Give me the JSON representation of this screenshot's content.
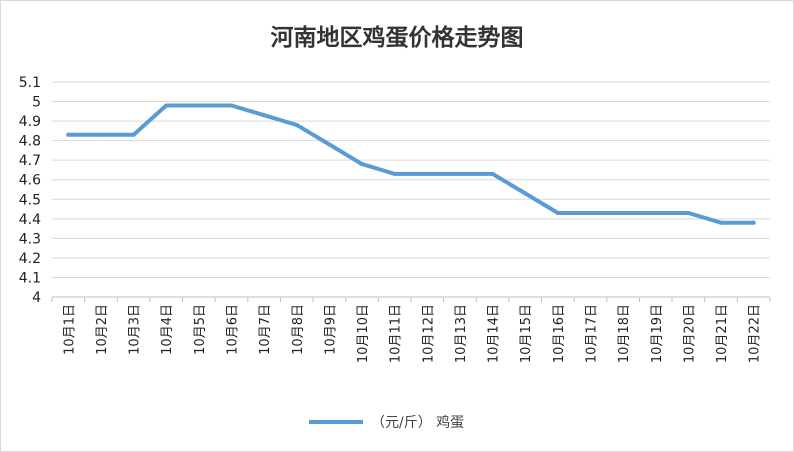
{
  "chart_data": {
    "type": "line",
    "title": "河南地区鸡蛋价格走势图",
    "xlabel": "",
    "ylabel": "",
    "categories": [
      "10月1日",
      "10月2日",
      "10月3日",
      "10月4日",
      "10月5日",
      "10月6日",
      "10月7日",
      "10月8日",
      "10月9日",
      "10月10日",
      "10月11日",
      "10月12日",
      "10月13日",
      "10月14日",
      "10月15日",
      "10月16日",
      "10月17日",
      "10月18日",
      "10月19日",
      "10月20日",
      "10月21日",
      "10月22日"
    ],
    "series": [
      {
        "name": "（元/斤） 鸡蛋",
        "values": [
          4.83,
          4.83,
          4.83,
          4.98,
          4.98,
          4.98,
          4.93,
          4.88,
          4.78,
          4.68,
          4.63,
          4.63,
          4.63,
          4.63,
          4.53,
          4.43,
          4.43,
          4.43,
          4.43,
          4.43,
          4.38,
          4.38
        ]
      }
    ],
    "yticks": [
      4,
      4.1,
      4.2,
      4.3,
      4.4,
      4.5,
      4.6,
      4.7,
      4.8,
      4.9,
      5,
      5.1
    ],
    "ylim": [
      4,
      5.1
    ],
    "grid": true,
    "legend": "bottom-center",
    "colors": {
      "line": "#5b9bd5",
      "grid": "#d9d9d9",
      "axis": "#bfbfbf"
    }
  }
}
